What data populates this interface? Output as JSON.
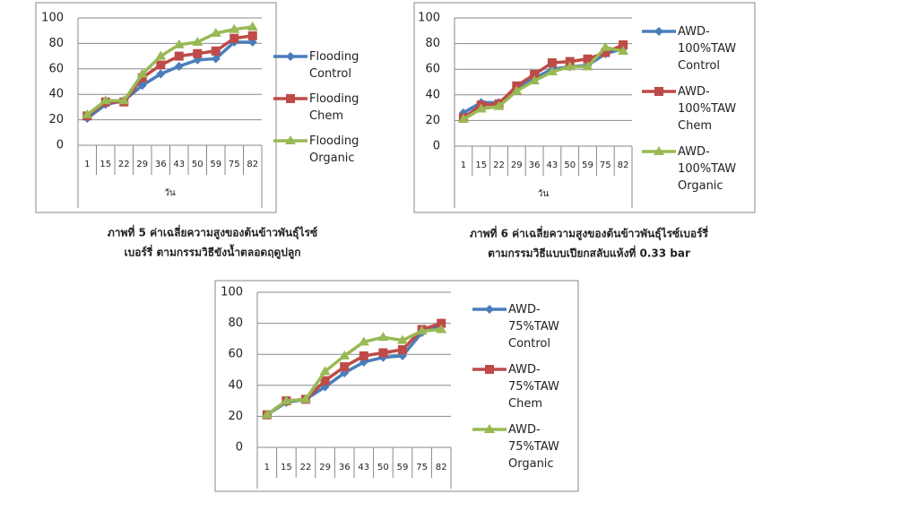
{
  "chart_data": [
    {
      "type": "line",
      "xlabel": "วัน",
      "categories": [
        "1",
        "15",
        "22",
        "29",
        "36",
        "43",
        "50",
        "59",
        "75",
        "82"
      ],
      "ylim": [
        0,
        100
      ],
      "yticks": [
        0,
        20,
        40,
        60,
        80,
        100
      ],
      "grid": true,
      "series": [
        {
          "name": "Flooding Control",
          "color": "#4a7ebb",
          "values": [
            21,
            32,
            35,
            47,
            56,
            62,
            67,
            68,
            81,
            81
          ]
        },
        {
          "name": "Flooding Chem",
          "color": "#be4b48",
          "values": [
            23,
            34,
            34,
            53,
            63,
            70,
            72,
            74,
            84,
            86
          ]
        },
        {
          "name": "Flooding Organic",
          "color": "#98b954",
          "values": [
            24,
            35,
            35,
            56,
            70,
            79,
            81,
            88,
            91,
            93
          ]
        }
      ],
      "caption": [
        "ภาพที่ 5  ค่าเฉลี่ยความสูงของต้นข้าวพันธุ์ไรซ์",
        "เบอร์รี่ ตามกรรมวิธีขังน้ำตลอดฤดูปลูก"
      ]
    },
    {
      "type": "line",
      "xlabel": "วัน",
      "categories": [
        "1",
        "15",
        "22",
        "29",
        "36",
        "43",
        "50",
        "59",
        "75",
        "82"
      ],
      "ylim": [
        0,
        100
      ],
      "yticks": [
        0,
        20,
        40,
        60,
        80,
        100
      ],
      "grid": true,
      "series": [
        {
          "name": "AWD-100%TAW Control",
          "color": "#4a7ebb",
          "values": [
            26,
            34,
            34,
            45,
            53,
            60,
            62,
            63,
            72,
            76
          ]
        },
        {
          "name": "AWD-100%TAW Chem",
          "color": "#be4b48",
          "values": [
            22,
            32,
            33,
            47,
            56,
            65,
            66,
            68,
            73,
            79
          ]
        },
        {
          "name": "AWD-100%TAW Organic",
          "color": "#98b954",
          "values": [
            21,
            29,
            31,
            43,
            51,
            58,
            62,
            62,
            77,
            74
          ]
        }
      ],
      "caption": [
        "ภาพที่ 6 ค่าเฉลี่ยความสูงของต้นข้าวพันธุ์ไรซ์เบอร์รี่",
        "ตามกรรมวิธีแบบเปียกสลับแห้งที่ 0.33 bar"
      ]
    },
    {
      "type": "line",
      "categories": [
        "1",
        "15",
        "22",
        "29",
        "36",
        "43",
        "50",
        "59",
        "75",
        "82"
      ],
      "ylim": [
        0,
        100
      ],
      "yticks": [
        0,
        20,
        40,
        60,
        80,
        100
      ],
      "grid": true,
      "series": [
        {
          "name": "AWD-75%TAW Control",
          "color": "#4a7ebb",
          "values": [
            21,
            29,
            31,
            39,
            48,
            55,
            58,
            59,
            74,
            79
          ]
        },
        {
          "name": "AWD-75%TAW Chem",
          "color": "#be4b48",
          "values": [
            21,
            30,
            31,
            43,
            52,
            59,
            61,
            63,
            76,
            80
          ]
        },
        {
          "name": "AWD-75%TAW Organic",
          "color": "#98b954",
          "values": [
            21,
            30,
            31,
            49,
            59,
            68,
            71,
            69,
            75,
            76
          ]
        }
      ]
    }
  ]
}
